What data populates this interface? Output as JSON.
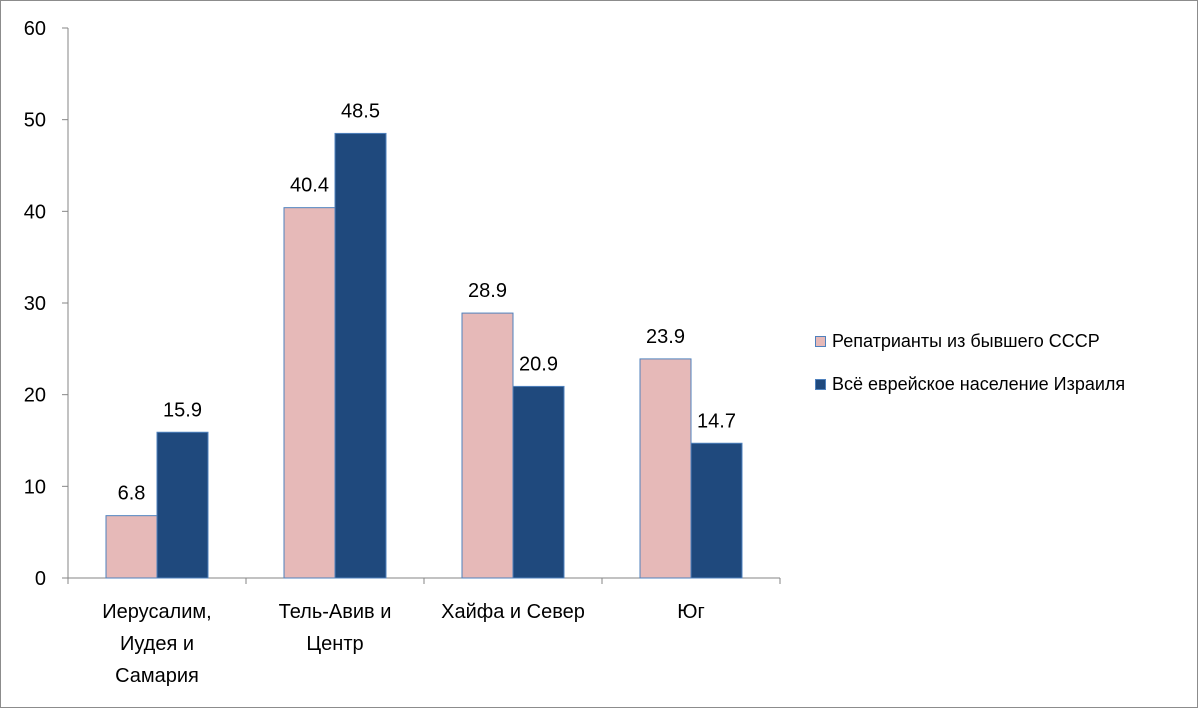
{
  "chart_data": {
    "type": "bar",
    "title": "",
    "xlabel": "",
    "ylabel": "",
    "ylim": [
      0,
      60
    ],
    "yticks": [
      "0",
      "10",
      "20",
      "30",
      "40",
      "50",
      "60"
    ],
    "grid": false,
    "legend_position": "right",
    "categories": [
      [
        "Иерусалим,",
        "Иудея и",
        "Самария"
      ],
      [
        "Тель-Авив и",
        "Центр"
      ],
      [
        "Хайфа и Север"
      ],
      [
        "Юг"
      ]
    ],
    "series": [
      {
        "name": "Репатрианты из бывшего СССР",
        "color": "#e6b9b8",
        "border": "#4f81bd",
        "values": [
          6.8,
          40.4,
          28.9,
          23.9
        ],
        "labels": [
          "6.8",
          "40.4",
          "28.9",
          "23.9"
        ]
      },
      {
        "name": "Всё еврейское население Израиля",
        "color": "#1f497d",
        "border": "#4f81bd",
        "values": [
          15.9,
          48.5,
          20.9,
          14.7
        ],
        "labels": [
          "15.9",
          "48.5",
          "20.9",
          "14.7"
        ]
      }
    ]
  }
}
